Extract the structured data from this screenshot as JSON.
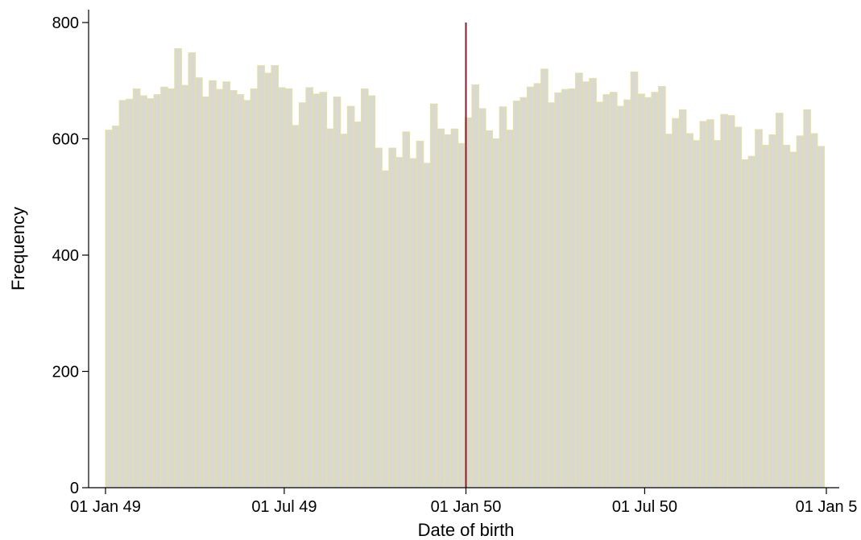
{
  "chart_data": {
    "type": "bar",
    "title": "",
    "xlabel": "Date of birth",
    "ylabel": "Frequency",
    "ylim": [
      0,
      800
    ],
    "xlim": [
      "1949-01-01",
      "1951-01-01"
    ],
    "yticks": [
      0,
      200,
      400,
      600,
      800
    ],
    "xticks": [
      {
        "date": "1949-01-01",
        "label": "01 Jan 49"
      },
      {
        "date": "1949-07-01",
        "label": "01 Jul 49"
      },
      {
        "date": "1950-01-01",
        "label": "01 Jan 50"
      },
      {
        "date": "1950-07-01",
        "label": "01 Jul 50"
      },
      {
        "date": "1951-01-01",
        "label": "01 Jan 5"
      }
    ],
    "bin_width_days": 7,
    "bins_start": "1949-01-01",
    "cutoff_date": "1950-01-01",
    "grid": false,
    "colors": {
      "bar_fill": "#d9d9d0",
      "bar_edge": "#e8e09c",
      "cutoff_line": "#8b1a2b"
    },
    "values": [
      615,
      622,
      666,
      668,
      686,
      674,
      669,
      676,
      689,
      686,
      755,
      692,
      748,
      705,
      672,
      700,
      685,
      698,
      683,
      676,
      666,
      686,
      726,
      713,
      726,
      688,
      686,
      623,
      662,
      688,
      677,
      680,
      617,
      672,
      608,
      656,
      629,
      686,
      674,
      584,
      545,
      584,
      568,
      612,
      566,
      596,
      558,
      660,
      617,
      607,
      617,
      592,
      636,
      693,
      652,
      614,
      600,
      655,
      615,
      665,
      671,
      689,
      695,
      720,
      662,
      679,
      685,
      686,
      713,
      698,
      704,
      663,
      676,
      680,
      656,
      667,
      715,
      677,
      671,
      680,
      690,
      608,
      635,
      650,
      609,
      597,
      630,
      633,
      597,
      642,
      640,
      620,
      564,
      570,
      616,
      589,
      607,
      644,
      589,
      577,
      605,
      650,
      609,
      587
    ]
  }
}
